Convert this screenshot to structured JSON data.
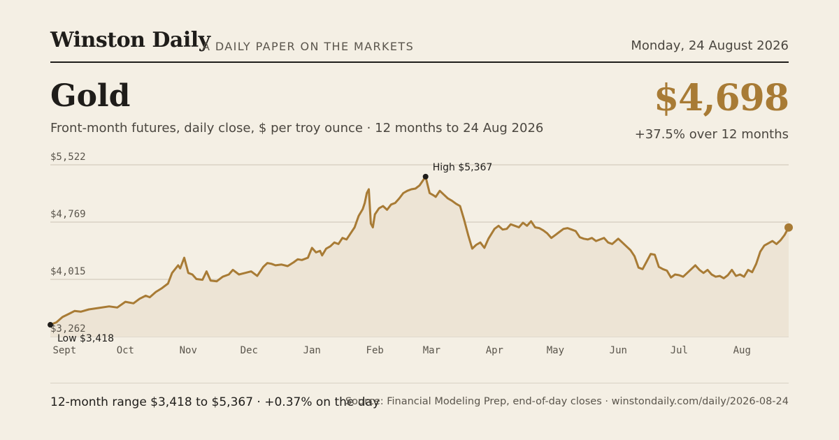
{
  "masthead": {
    "brand": "Winston Daily",
    "tagline": "A DAILY PAPER ON THE MARKETS",
    "date": "Monday, 24 August 2026"
  },
  "header": {
    "title": "Gold",
    "subtitle": "Front-month futures, daily close, $ per troy ounce · 12 months to 24 Aug 2026",
    "price": "$4,698",
    "change": "+37.5% over 12 months"
  },
  "footer": {
    "range_text": "12-month range $3,418 to $5,367 · +0.37% on the day",
    "source": "Source: Financial Modeling Prep, end-of-day closes · winstondaily.com/daily/2026-08-24"
  },
  "colors": {
    "line": "#a87b35",
    "area": "#ede4d5",
    "grid": "#d9d2c3",
    "axis_text": "#5a554c",
    "marker": "#1f1d1a",
    "background": "#f4efe4"
  },
  "chart_data": {
    "type": "area",
    "y_ticks": [
      3262,
      4015,
      4769,
      5522
    ],
    "y_tick_labels": [
      "$3,262",
      "$4,015",
      "$4,769",
      "$5,522"
    ],
    "ylim": [
      3262,
      5522
    ],
    "x_ticks": [
      {
        "date": "2025-09-01",
        "label": "Sept"
      },
      {
        "date": "2025-10-01",
        "label": "Oct"
      },
      {
        "date": "2025-11-01",
        "label": "Nov"
      },
      {
        "date": "2025-12-01",
        "label": "Dec"
      },
      {
        "date": "2026-01-01",
        "label": "Jan"
      },
      {
        "date": "2026-02-01",
        "label": "Feb"
      },
      {
        "date": "2026-03-01",
        "label": "Mar"
      },
      {
        "date": "2026-04-01",
        "label": "Apr"
      },
      {
        "date": "2026-05-01",
        "label": "May"
      },
      {
        "date": "2026-06-01",
        "label": "Jun"
      },
      {
        "date": "2026-07-01",
        "label": "Jul"
      },
      {
        "date": "2026-08-01",
        "label": "Aug"
      }
    ],
    "annotations": [
      {
        "date": "2026-02-26",
        "value": 5367,
        "label": "High $5,367",
        "position": "above-right"
      },
      {
        "date": "2025-08-25",
        "value": 3418,
        "label": "Low $3,418",
        "position": "below-right"
      }
    ],
    "last_point": {
      "date": "2026-08-24",
      "value": 4698
    },
    "grid": true,
    "series": [
      {
        "points": [
          [
            "2025-08-25",
            3418
          ],
          [
            "2025-08-28",
            3450
          ],
          [
            "2025-08-31",
            3520
          ],
          [
            "2025-09-03",
            3560
          ],
          [
            "2025-09-06",
            3600
          ],
          [
            "2025-09-09",
            3590
          ],
          [
            "2025-09-13",
            3620
          ],
          [
            "2025-09-18",
            3640
          ],
          [
            "2025-09-23",
            3660
          ],
          [
            "2025-09-27",
            3645
          ],
          [
            "2025-10-01",
            3720
          ],
          [
            "2025-10-05",
            3700
          ],
          [
            "2025-10-08",
            3760
          ],
          [
            "2025-10-11",
            3800
          ],
          [
            "2025-10-13",
            3780
          ],
          [
            "2025-10-16",
            3850
          ],
          [
            "2025-10-19",
            3900
          ],
          [
            "2025-10-22",
            3960
          ],
          [
            "2025-10-24",
            4100
          ],
          [
            "2025-10-27",
            4200
          ],
          [
            "2025-10-28",
            4160
          ],
          [
            "2025-10-30",
            4300
          ],
          [
            "2025-11-01",
            4100
          ],
          [
            "2025-11-03",
            4080
          ],
          [
            "2025-11-05",
            4020
          ],
          [
            "2025-11-08",
            4010
          ],
          [
            "2025-11-10",
            4120
          ],
          [
            "2025-11-12",
            4000
          ],
          [
            "2025-11-15",
            3990
          ],
          [
            "2025-11-18",
            4050
          ],
          [
            "2025-11-21",
            4080
          ],
          [
            "2025-11-23",
            4140
          ],
          [
            "2025-11-26",
            4080
          ],
          [
            "2025-11-29",
            4100
          ],
          [
            "2025-12-02",
            4120
          ],
          [
            "2025-12-05",
            4060
          ],
          [
            "2025-12-08",
            4180
          ],
          [
            "2025-12-10",
            4230
          ],
          [
            "2025-12-12",
            4220
          ],
          [
            "2025-12-14",
            4200
          ],
          [
            "2025-12-17",
            4210
          ],
          [
            "2025-12-20",
            4190
          ],
          [
            "2025-12-23",
            4240
          ],
          [
            "2025-12-25",
            4280
          ],
          [
            "2025-12-27",
            4270
          ],
          [
            "2025-12-30",
            4300
          ],
          [
            "2026-01-01",
            4430
          ],
          [
            "2026-01-03",
            4370
          ],
          [
            "2026-01-05",
            4390
          ],
          [
            "2026-01-06",
            4330
          ],
          [
            "2026-01-08",
            4420
          ],
          [
            "2026-01-10",
            4450
          ],
          [
            "2026-01-12",
            4500
          ],
          [
            "2026-01-14",
            4480
          ],
          [
            "2026-01-16",
            4560
          ],
          [
            "2026-01-18",
            4540
          ],
          [
            "2026-01-20",
            4620
          ],
          [
            "2026-01-22",
            4700
          ],
          [
            "2026-01-24",
            4850
          ],
          [
            "2026-01-26",
            4940
          ],
          [
            "2026-01-27",
            5020
          ],
          [
            "2026-01-28",
            5150
          ],
          [
            "2026-01-29",
            5200
          ],
          [
            "2026-01-30",
            4750
          ],
          [
            "2026-01-31",
            4700
          ],
          [
            "2026-02-01",
            4870
          ],
          [
            "2026-02-03",
            4950
          ],
          [
            "2026-02-05",
            4980
          ],
          [
            "2026-02-07",
            4930
          ],
          [
            "2026-02-09",
            5000
          ],
          [
            "2026-02-11",
            5020
          ],
          [
            "2026-02-13",
            5080
          ],
          [
            "2026-02-15",
            5150
          ],
          [
            "2026-02-17",
            5180
          ],
          [
            "2026-02-19",
            5200
          ],
          [
            "2026-02-21",
            5210
          ],
          [
            "2026-02-23",
            5250
          ],
          [
            "2026-02-26",
            5367
          ],
          [
            "2026-02-28",
            5150
          ],
          [
            "2026-03-02",
            5120
          ],
          [
            "2026-03-03",
            5100
          ],
          [
            "2026-03-05",
            5180
          ],
          [
            "2026-03-07",
            5130
          ],
          [
            "2026-03-09",
            5080
          ],
          [
            "2026-03-11",
            5050
          ],
          [
            "2026-03-13",
            5010
          ],
          [
            "2026-03-15",
            4980
          ],
          [
            "2026-03-17",
            4800
          ],
          [
            "2026-03-19",
            4600
          ],
          [
            "2026-03-21",
            4420
          ],
          [
            "2026-03-23",
            4470
          ],
          [
            "2026-03-25",
            4500
          ],
          [
            "2026-03-27",
            4430
          ],
          [
            "2026-03-29",
            4550
          ],
          [
            "2026-04-01",
            4680
          ],
          [
            "2026-04-03",
            4720
          ],
          [
            "2026-04-05",
            4670
          ],
          [
            "2026-04-07",
            4680
          ],
          [
            "2026-04-09",
            4740
          ],
          [
            "2026-04-11",
            4720
          ],
          [
            "2026-04-13",
            4700
          ],
          [
            "2026-04-15",
            4760
          ],
          [
            "2026-04-17",
            4720
          ],
          [
            "2026-04-19",
            4780
          ],
          [
            "2026-04-21",
            4700
          ],
          [
            "2026-04-23",
            4690
          ],
          [
            "2026-04-25",
            4660
          ],
          [
            "2026-04-27",
            4620
          ],
          [
            "2026-04-29",
            4560
          ],
          [
            "2026-05-01",
            4600
          ],
          [
            "2026-05-03",
            4640
          ],
          [
            "2026-05-05",
            4680
          ],
          [
            "2026-05-07",
            4690
          ],
          [
            "2026-05-09",
            4670
          ],
          [
            "2026-05-11",
            4650
          ],
          [
            "2026-05-13",
            4570
          ],
          [
            "2026-05-15",
            4550
          ],
          [
            "2026-05-17",
            4540
          ],
          [
            "2026-05-19",
            4560
          ],
          [
            "2026-05-21",
            4520
          ],
          [
            "2026-05-23",
            4540
          ],
          [
            "2026-05-25",
            4560
          ],
          [
            "2026-05-27",
            4500
          ],
          [
            "2026-05-29",
            4480
          ],
          [
            "2026-06-01",
            4550
          ],
          [
            "2026-06-03",
            4500
          ],
          [
            "2026-06-05",
            4450
          ],
          [
            "2026-06-07",
            4400
          ],
          [
            "2026-06-09",
            4320
          ],
          [
            "2026-06-11",
            4170
          ],
          [
            "2026-06-13",
            4150
          ],
          [
            "2026-06-15",
            4250
          ],
          [
            "2026-06-17",
            4350
          ],
          [
            "2026-06-19",
            4340
          ],
          [
            "2026-06-21",
            4180
          ],
          [
            "2026-06-23",
            4150
          ],
          [
            "2026-06-25",
            4130
          ],
          [
            "2026-06-27",
            4040
          ],
          [
            "2026-06-29",
            4080
          ],
          [
            "2026-07-01",
            4070
          ],
          [
            "2026-07-03",
            4050
          ],
          [
            "2026-07-05",
            4100
          ],
          [
            "2026-07-07",
            4150
          ],
          [
            "2026-07-09",
            4200
          ],
          [
            "2026-07-11",
            4140
          ],
          [
            "2026-07-13",
            4100
          ],
          [
            "2026-07-15",
            4140
          ],
          [
            "2026-07-17",
            4080
          ],
          [
            "2026-07-19",
            4050
          ],
          [
            "2026-07-21",
            4060
          ],
          [
            "2026-07-23",
            4030
          ],
          [
            "2026-07-25",
            4070
          ],
          [
            "2026-07-27",
            4140
          ],
          [
            "2026-07-29",
            4060
          ],
          [
            "2026-07-31",
            4080
          ],
          [
            "2026-08-02",
            4050
          ],
          [
            "2026-08-04",
            4140
          ],
          [
            "2026-08-06",
            4110
          ],
          [
            "2026-08-08",
            4220
          ],
          [
            "2026-08-10",
            4380
          ],
          [
            "2026-08-12",
            4460
          ],
          [
            "2026-08-14",
            4490
          ],
          [
            "2026-08-16",
            4520
          ],
          [
            "2026-08-18",
            4480
          ],
          [
            "2026-08-20",
            4530
          ],
          [
            "2026-08-22",
            4600
          ],
          [
            "2026-08-24",
            4698
          ]
        ]
      }
    ]
  }
}
